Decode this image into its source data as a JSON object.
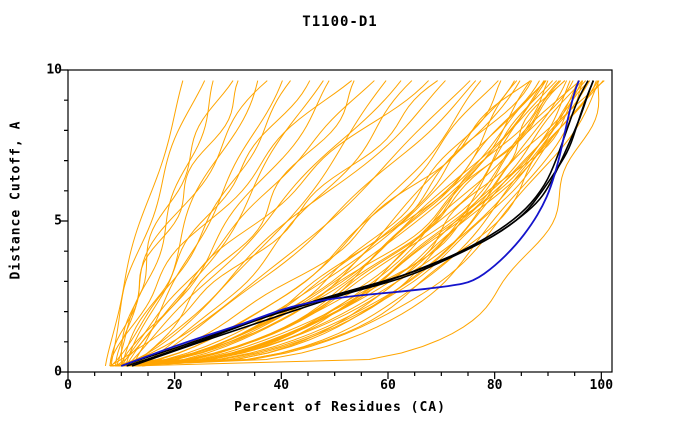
{
  "chart_data": {
    "type": "line",
    "title": "T1100-D1",
    "xlabel": "Percent of Residues (CA)",
    "ylabel": "Distance Cutoff, A",
    "xlim": [
      0,
      102
    ],
    "ylim": [
      0,
      10
    ],
    "x_ticks": [
      0,
      20,
      40,
      60,
      80,
      100
    ],
    "y_ticks": [
      0,
      5,
      10
    ],
    "x_minor_step": 5,
    "y_minor_step": 1,
    "grid": false,
    "legend": "none",
    "colors": {
      "models": "#FFA500",
      "highlight_black": "#000000",
      "highlight_blue": "#1414CC",
      "frame": "#000000",
      "text": "#000000"
    },
    "model_curves": [
      {
        "x0": 7,
        "x1": 22,
        "p": 1.15
      },
      {
        "x0": 8,
        "x1": 25,
        "p": 1.3
      },
      {
        "x0": 9,
        "x1": 28,
        "p": 1.0
      },
      {
        "x0": 10,
        "x1": 30,
        "p": 1.45
      },
      {
        "x0": 8,
        "x1": 33,
        "p": 1.2
      },
      {
        "x0": 11,
        "x1": 35,
        "p": 1.05
      },
      {
        "x0": 9,
        "x1": 38,
        "p": 1.5
      },
      {
        "x0": 12,
        "x1": 40,
        "p": 1.0
      },
      {
        "x0": 8,
        "x1": 42,
        "p": 0.9
      },
      {
        "x0": 10,
        "x1": 45,
        "p": 1.2
      },
      {
        "x0": 9,
        "x1": 47,
        "p": 0.8
      },
      {
        "x0": 11,
        "x1": 50,
        "p": 1.0
      },
      {
        "x0": 8,
        "x1": 52,
        "p": 1.3
      },
      {
        "x0": 12,
        "x1": 55,
        "p": 0.9
      },
      {
        "x0": 10,
        "x1": 57,
        "p": 1.1
      },
      {
        "x0": 9,
        "x1": 60,
        "p": 0.7
      },
      {
        "x0": 11,
        "x1": 62,
        "p": 1.0
      },
      {
        "x0": 13,
        "x1": 65,
        "p": 0.8
      },
      {
        "x0": 10,
        "x1": 67,
        "p": 1.2
      },
      {
        "x0": 8,
        "x1": 70,
        "p": 0.9
      },
      {
        "x0": 12,
        "x1": 72,
        "p": 1.0
      },
      {
        "x0": 9,
        "x1": 75,
        "p": 0.75
      },
      {
        "x0": 13,
        "x1": 77,
        "p": 0.85
      },
      {
        "x0": 10,
        "x1": 80,
        "p": 0.6
      },
      {
        "x0": 8,
        "x1": 82,
        "p": 0.5
      },
      {
        "x0": 11,
        "x1": 84,
        "p": 0.55
      },
      {
        "x0": 9,
        "x1": 85,
        "p": 0.45
      },
      {
        "x0": 12,
        "x1": 86,
        "p": 0.6
      },
      {
        "x0": 10,
        "x1": 87,
        "p": 0.4
      },
      {
        "x0": 8,
        "x1": 88,
        "p": 0.5
      },
      {
        "x0": 11,
        "x1": 89,
        "p": 0.35
      },
      {
        "x0": 9,
        "x1": 90,
        "p": 0.55
      },
      {
        "x0": 13,
        "x1": 90,
        "p": 0.45
      },
      {
        "x0": 10,
        "x1": 91,
        "p": 0.5
      },
      {
        "x0": 8,
        "x1": 92,
        "p": 0.4
      },
      {
        "x0": 12,
        "x1": 92,
        "p": 0.6
      },
      {
        "x0": 9,
        "x1": 93,
        "p": 0.35
      },
      {
        "x0": 11,
        "x1": 93,
        "p": 0.5
      },
      {
        "x0": 10,
        "x1": 94,
        "p": 0.45
      },
      {
        "x0": 8,
        "x1": 94,
        "p": 0.55
      },
      {
        "x0": 12,
        "x1": 95,
        "p": 0.4
      },
      {
        "x0": 9,
        "x1": 95,
        "p": 0.5
      },
      {
        "x0": 11,
        "x1": 96,
        "p": 0.35
      },
      {
        "x0": 10,
        "x1": 96,
        "p": 0.45
      },
      {
        "x0": 13,
        "x1": 97,
        "p": 0.5
      },
      {
        "x0": 9,
        "x1": 97,
        "p": 0.4
      },
      {
        "x0": 11,
        "x1": 98,
        "p": 0.45
      },
      {
        "x0": 10,
        "x1": 98,
        "p": 0.35
      },
      {
        "x0": 12,
        "x1": 99,
        "p": 0.5
      },
      {
        "x0": 9,
        "x1": 99,
        "p": 0.4
      },
      {
        "x0": 10,
        "x1": 100,
        "p": 0.45
      },
      {
        "x0": 11,
        "x1": 100,
        "p": 0.35
      },
      {
        "x0": 14,
        "x1": 100,
        "p": 0.55
      },
      {
        "x0": 12,
        "x1": 100,
        "p": 0.18
      },
      {
        "x0": 9,
        "x1": 86,
        "p": 0.7
      },
      {
        "x0": 13,
        "x1": 91,
        "p": 0.65
      },
      {
        "x0": 10,
        "x1": 89,
        "p": 0.6
      },
      {
        "x0": 8,
        "x1": 78,
        "p": 0.55
      },
      {
        "x0": 11,
        "x1": 83,
        "p": 0.5
      },
      {
        "x0": 14,
        "x1": 93,
        "p": 0.55
      },
      {
        "x0": 9,
        "x1": 97,
        "p": 0.3
      }
    ],
    "traces": [
      {
        "name": "highlight-black-1",
        "color": "#000000",
        "points": [
          [
            10,
            0.2
          ],
          [
            15,
            0.5
          ],
          [
            22,
            0.9
          ],
          [
            30,
            1.4
          ],
          [
            40,
            2.0
          ],
          [
            50,
            2.5
          ],
          [
            60,
            3.0
          ],
          [
            70,
            3.7
          ],
          [
            78,
            4.3
          ],
          [
            84,
            5.0
          ],
          [
            88,
            5.6
          ],
          [
            90,
            6.1
          ],
          [
            92,
            6.8
          ],
          [
            94,
            7.6
          ],
          [
            96,
            8.4
          ],
          [
            97.5,
            9.2
          ],
          [
            98.5,
            9.65
          ]
        ]
      },
      {
        "name": "highlight-black-2",
        "color": "#000000",
        "points": [
          [
            11,
            0.2
          ],
          [
            18,
            0.6
          ],
          [
            26,
            1.1
          ],
          [
            35,
            1.7
          ],
          [
            45,
            2.3
          ],
          [
            55,
            2.8
          ],
          [
            65,
            3.3
          ],
          [
            74,
            4.0
          ],
          [
            81,
            4.7
          ],
          [
            86,
            5.4
          ],
          [
            89.5,
            6.2
          ],
          [
            91.5,
            7.0
          ],
          [
            93.5,
            8.0
          ],
          [
            95.5,
            9.0
          ],
          [
            97.5,
            9.65
          ]
        ]
      },
      {
        "name": "highlight-black-3",
        "color": "#000000",
        "points": [
          [
            12,
            0.2
          ],
          [
            20,
            0.7
          ],
          [
            30,
            1.3
          ],
          [
            42,
            2.0
          ],
          [
            52,
            2.6
          ],
          [
            63,
            3.1
          ],
          [
            72,
            3.8
          ],
          [
            80,
            4.5
          ],
          [
            85.5,
            5.2
          ],
          [
            89,
            6.0
          ],
          [
            92,
            6.8
          ],
          [
            94,
            7.4
          ],
          [
            95.5,
            8.2
          ],
          [
            97,
            9.0
          ],
          [
            98.5,
            9.65
          ]
        ]
      },
      {
        "name": "highlight-blue",
        "color": "#1414CC",
        "points": [
          [
            10,
            0.2
          ],
          [
            16,
            0.6
          ],
          [
            24,
            1.1
          ],
          [
            33,
            1.6
          ],
          [
            42,
            2.2
          ],
          [
            52,
            2.5
          ],
          [
            62,
            2.65
          ],
          [
            72,
            2.85
          ],
          [
            76,
            3.0
          ],
          [
            80,
            3.5
          ],
          [
            84,
            4.2
          ],
          [
            87,
            4.9
          ],
          [
            89,
            5.5
          ],
          [
            90.5,
            6.1
          ],
          [
            92,
            7.0
          ],
          [
            93,
            7.8
          ],
          [
            94,
            8.6
          ],
          [
            95,
            9.3
          ],
          [
            95.8,
            9.65
          ]
        ]
      }
    ]
  }
}
